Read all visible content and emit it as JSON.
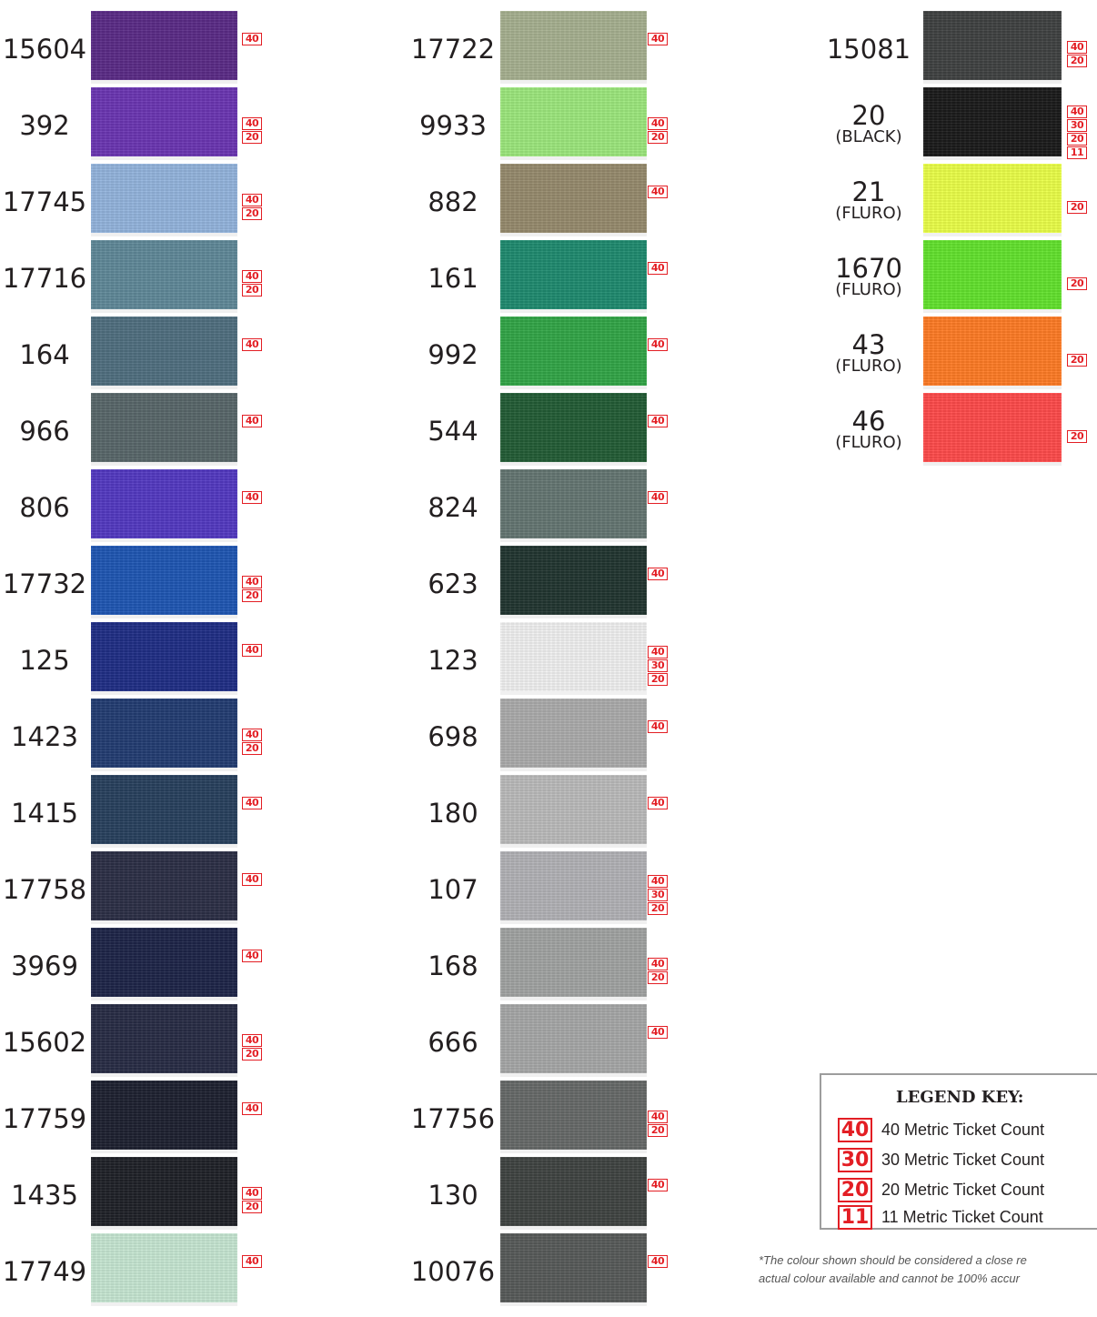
{
  "columns": [
    [
      {
        "code": "15604",
        "note": "",
        "color": "#5a2a86",
        "tickets": [
          "40"
        ]
      },
      {
        "code": "392",
        "note": "",
        "color": "#6a35b2",
        "tickets": [
          "40",
          "20"
        ]
      },
      {
        "code": "17745",
        "note": "",
        "color": "#93b4dd",
        "tickets": [
          "40",
          "20"
        ]
      },
      {
        "code": "17716",
        "note": "",
        "color": "#5f8898",
        "tickets": [
          "40",
          "20"
        ]
      },
      {
        "code": "164",
        "note": "",
        "color": "#4f6e7f",
        "tickets": [
          "40"
        ]
      },
      {
        "code": "966",
        "note": "",
        "color": "#586669",
        "tickets": [
          "40"
        ]
      },
      {
        "code": "806",
        "note": "",
        "color": "#5339c1",
        "tickets": [
          "40"
        ]
      },
      {
        "code": "17732",
        "note": "",
        "color": "#1e56b3",
        "tickets": [
          "40",
          "20"
        ]
      },
      {
        "code": "125",
        "note": "",
        "color": "#1f2d85",
        "tickets": [
          "40"
        ]
      },
      {
        "code": "1423",
        "note": "",
        "color": "#223c72",
        "tickets": [
          "40",
          "20"
        ]
      },
      {
        "code": "1415",
        "note": "",
        "color": "#27405d",
        "tickets": [
          "40"
        ]
      },
      {
        "code": "17758",
        "note": "",
        "color": "#2b2e45",
        "tickets": [
          "40"
        ]
      },
      {
        "code": "3969",
        "note": "",
        "color": "#1d2447",
        "tickets": [
          "40"
        ]
      },
      {
        "code": "15602",
        "note": "",
        "color": "#272b44",
        "tickets": [
          "40",
          "20"
        ]
      },
      {
        "code": "17759",
        "note": "",
        "color": "#1d2030",
        "tickets": [
          "40"
        ]
      },
      {
        "code": "1435",
        "note": "",
        "color": "#1f2127",
        "tickets": [
          "40",
          "20"
        ]
      },
      {
        "code": "17749",
        "note": "",
        "color": "#c6e6d2",
        "tickets": [
          "40"
        ]
      }
    ],
    [
      {
        "code": "17722",
        "note": "",
        "color": "#a6b08f",
        "tickets": [
          "40"
        ]
      },
      {
        "code": "9933",
        "note": "",
        "color": "#9ce77c",
        "tickets": [
          "40",
          "20"
        ]
      },
      {
        "code": "882",
        "note": "",
        "color": "#968a6c",
        "tickets": [
          "40"
        ]
      },
      {
        "code": "161",
        "note": "",
        "color": "#1e8a6e",
        "tickets": [
          "40"
        ]
      },
      {
        "code": "992",
        "note": "",
        "color": "#31a546",
        "tickets": [
          "40"
        ]
      },
      {
        "code": "544",
        "note": "",
        "color": "#225c35",
        "tickets": [
          "40"
        ]
      },
      {
        "code": "824",
        "note": "",
        "color": "#647672",
        "tickets": [
          "40"
        ]
      },
      {
        "code": "623",
        "note": "",
        "color": "#213530",
        "tickets": [
          "40"
        ]
      },
      {
        "code": "123",
        "note": "",
        "color": "#f1f1f1",
        "tickets": [
          "40",
          "30",
          "20"
        ]
      },
      {
        "code": "698",
        "note": "",
        "color": "#ababab",
        "tickets": [
          "40"
        ]
      },
      {
        "code": "180",
        "note": "",
        "color": "#bbbbbb",
        "tickets": [
          "40"
        ]
      },
      {
        "code": "107",
        "note": "",
        "color": "#b2b2b6",
        "tickets": [
          "40",
          "30",
          "20"
        ]
      },
      {
        "code": "168",
        "note": "",
        "color": "#a1a3a2",
        "tickets": [
          "40",
          "20"
        ]
      },
      {
        "code": "666",
        "note": "",
        "color": "#a6a7a7",
        "tickets": [
          "40"
        ]
      },
      {
        "code": "17756",
        "note": "",
        "color": "#666968",
        "tickets": [
          "40",
          "20"
        ]
      },
      {
        "code": "130",
        "note": "",
        "color": "#3f4341",
        "tickets": [
          "40"
        ]
      },
      {
        "code": "10076",
        "note": "",
        "color": "#575a59",
        "tickets": [
          "40"
        ]
      }
    ],
    [
      {
        "code": "15081",
        "note": "",
        "color": "#3f4141",
        "tickets": [
          "40",
          "20"
        ]
      },
      {
        "code": "20",
        "note": "(BLACK)",
        "color": "#1a1a1a",
        "tickets": [
          "40",
          "30",
          "20",
          "11"
        ]
      },
      {
        "code": "21",
        "note": "(FLURO)",
        "color": "#eaff47",
        "tickets": [
          "20"
        ]
      },
      {
        "code": "1670",
        "note": "(FLURO)",
        "color": "#62e22c",
        "tickets": [
          "20"
        ]
      },
      {
        "code": "43",
        "note": "(FLURO)",
        "color": "#ff7b24",
        "tickets": [
          "20"
        ]
      },
      {
        "code": "46",
        "note": "(FLURO)",
        "color": "#ff4a4a",
        "tickets": [
          "20"
        ]
      }
    ]
  ],
  "legend": {
    "title": "LEGEND KEY:",
    "items": [
      {
        "badge": "40",
        "label": "40 Metric Ticket Count"
      },
      {
        "badge": "30",
        "label": "30 Metric Ticket Count"
      },
      {
        "badge": "20",
        "label": "20 Metric Ticket Count"
      },
      {
        "badge": "11",
        "label": "11 Metric Ticket Count"
      }
    ]
  },
  "disclaimer": {
    "line1": "*The colour shown should be considered a close re",
    "line2": "actual colour available and cannot be 100% accur"
  },
  "colors": {
    "badge_red": "#e31e24",
    "legend_border": "#9d9d9d"
  }
}
